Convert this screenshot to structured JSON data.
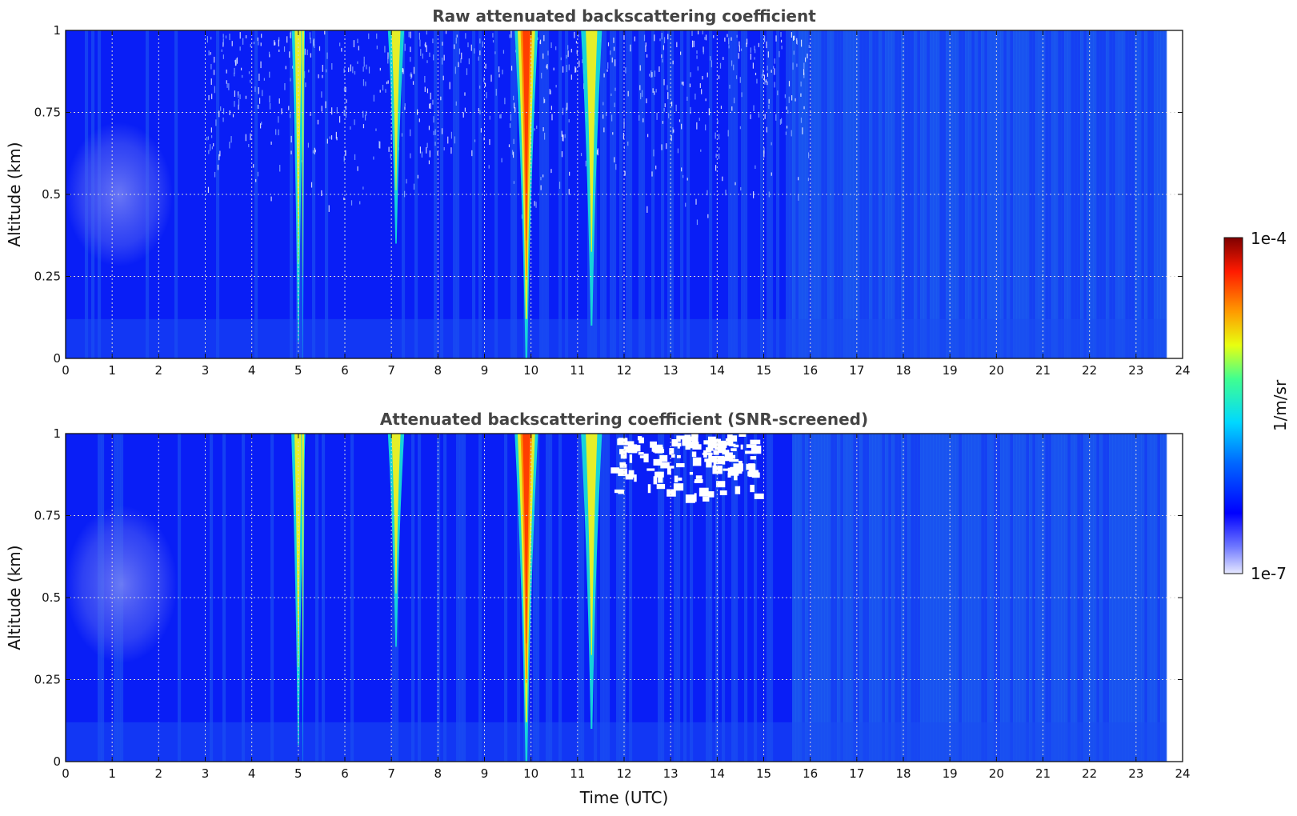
{
  "colors": {
    "field_low": "#0a1ff5",
    "field_base": "#1a4cf2",
    "field_high": "#1f66ee",
    "plume_core": "#ff3a00",
    "plume_mid": "#f0f020",
    "plume_edge": "#16dcd8",
    "screened_out": "#ffffff"
  },
  "chart_data": [
    {
      "type": "heatmap",
      "title": "Raw attenuated backscattering coefficient",
      "ylabel": "Altitude (km)",
      "xlabel": "",
      "xlim": [
        0,
        24
      ],
      "ylim": [
        0,
        1
      ],
      "data_xmax": 23.65,
      "x_ticks": [
        "0",
        "1",
        "2",
        "3",
        "4",
        "5",
        "6",
        "7",
        "8",
        "9",
        "10",
        "11",
        "12",
        "13",
        "14",
        "15",
        "16",
        "17",
        "18",
        "19",
        "20",
        "21",
        "22",
        "23",
        "24"
      ],
      "y_ticks": [
        "0",
        "0.25",
        "0.5",
        "0.75",
        "1"
      ],
      "grid": true,
      "plumes": [
        {
          "time": 5.0,
          "width": 0.28,
          "depth": 0.95,
          "peak": "mid"
        },
        {
          "time": 5.1,
          "width": 0.08,
          "depth": 1.0,
          "peak": "mid"
        },
        {
          "time": 7.1,
          "width": 0.35,
          "depth": 0.65,
          "peak": "mid"
        },
        {
          "time": 9.9,
          "width": 0.5,
          "depth": 1.0,
          "peak": "core"
        },
        {
          "time": 11.3,
          "width": 0.45,
          "depth": 0.9,
          "peak": "mid"
        }
      ],
      "low_signal_region": {
        "x": [
          0,
          2.3
        ],
        "y": [
          0.28,
          0.72
        ]
      },
      "noise_region": {
        "x": [
          3,
          16
        ],
        "y": [
          0.4,
          1
        ]
      }
    },
    {
      "type": "heatmap",
      "title": "Attenuated backscattering coefficient (SNR-screened)",
      "ylabel": "Altitude (km)",
      "xlabel": "Time (UTC)",
      "xlim": [
        0,
        24
      ],
      "ylim": [
        0,
        1
      ],
      "data_xmax": 23.65,
      "x_ticks": [
        "0",
        "1",
        "2",
        "3",
        "4",
        "5",
        "6",
        "7",
        "8",
        "9",
        "10",
        "11",
        "12",
        "13",
        "14",
        "15",
        "16",
        "17",
        "18",
        "19",
        "20",
        "21",
        "22",
        "23",
        "24"
      ],
      "y_ticks": [
        "0",
        "0.25",
        "0.5",
        "0.75",
        "1"
      ],
      "grid": true,
      "plumes": [
        {
          "time": 5.0,
          "width": 0.3,
          "depth": 0.95,
          "peak": "mid"
        },
        {
          "time": 5.1,
          "width": 0.08,
          "depth": 1.0,
          "peak": "mid"
        },
        {
          "time": 7.1,
          "width": 0.35,
          "depth": 0.65,
          "peak": "mid"
        },
        {
          "time": 9.9,
          "width": 0.5,
          "depth": 1.0,
          "peak": "core"
        },
        {
          "time": 11.3,
          "width": 0.45,
          "depth": 0.9,
          "peak": "mid"
        }
      ],
      "low_signal_region": {
        "x": [
          0,
          2.4
        ],
        "y": [
          0.3,
          0.78
        ]
      },
      "screened_region": {
        "x": [
          11.7,
          14.8
        ],
        "y": [
          0.78,
          1
        ]
      }
    }
  ],
  "colorbar": {
    "max_label": "1e-4",
    "min_label": "1e-7",
    "label": "1/m/sr",
    "scale": "log",
    "range": [
      1e-07,
      0.0001
    ]
  }
}
